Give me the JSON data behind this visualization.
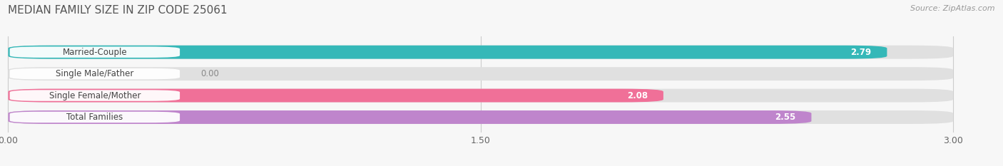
{
  "title": "MEDIAN FAMILY SIZE IN ZIP CODE 25061",
  "source": "Source: ZipAtlas.com",
  "categories": [
    "Married-Couple",
    "Single Male/Father",
    "Single Female/Mother",
    "Total Families"
  ],
  "values": [
    2.79,
    0.0,
    2.08,
    2.55
  ],
  "bar_colors": [
    "#35b8b8",
    "#aabde8",
    "#f07098",
    "#bf85cc"
  ],
  "bar_bg_color": "#e0e0e0",
  "xlim_max": 3.0,
  "xticks": [
    0.0,
    1.5,
    3.0
  ],
  "xtick_labels": [
    "0.00",
    "1.50",
    "3.00"
  ],
  "title_fontsize": 11,
  "source_fontsize": 8,
  "label_fontsize": 8.5,
  "value_fontsize": 8.5,
  "bar_height": 0.62,
  "fig_bg": "#f7f7f7",
  "plot_bg": "#f7f7f7",
  "fig_width": 14.06,
  "fig_height": 2.33
}
